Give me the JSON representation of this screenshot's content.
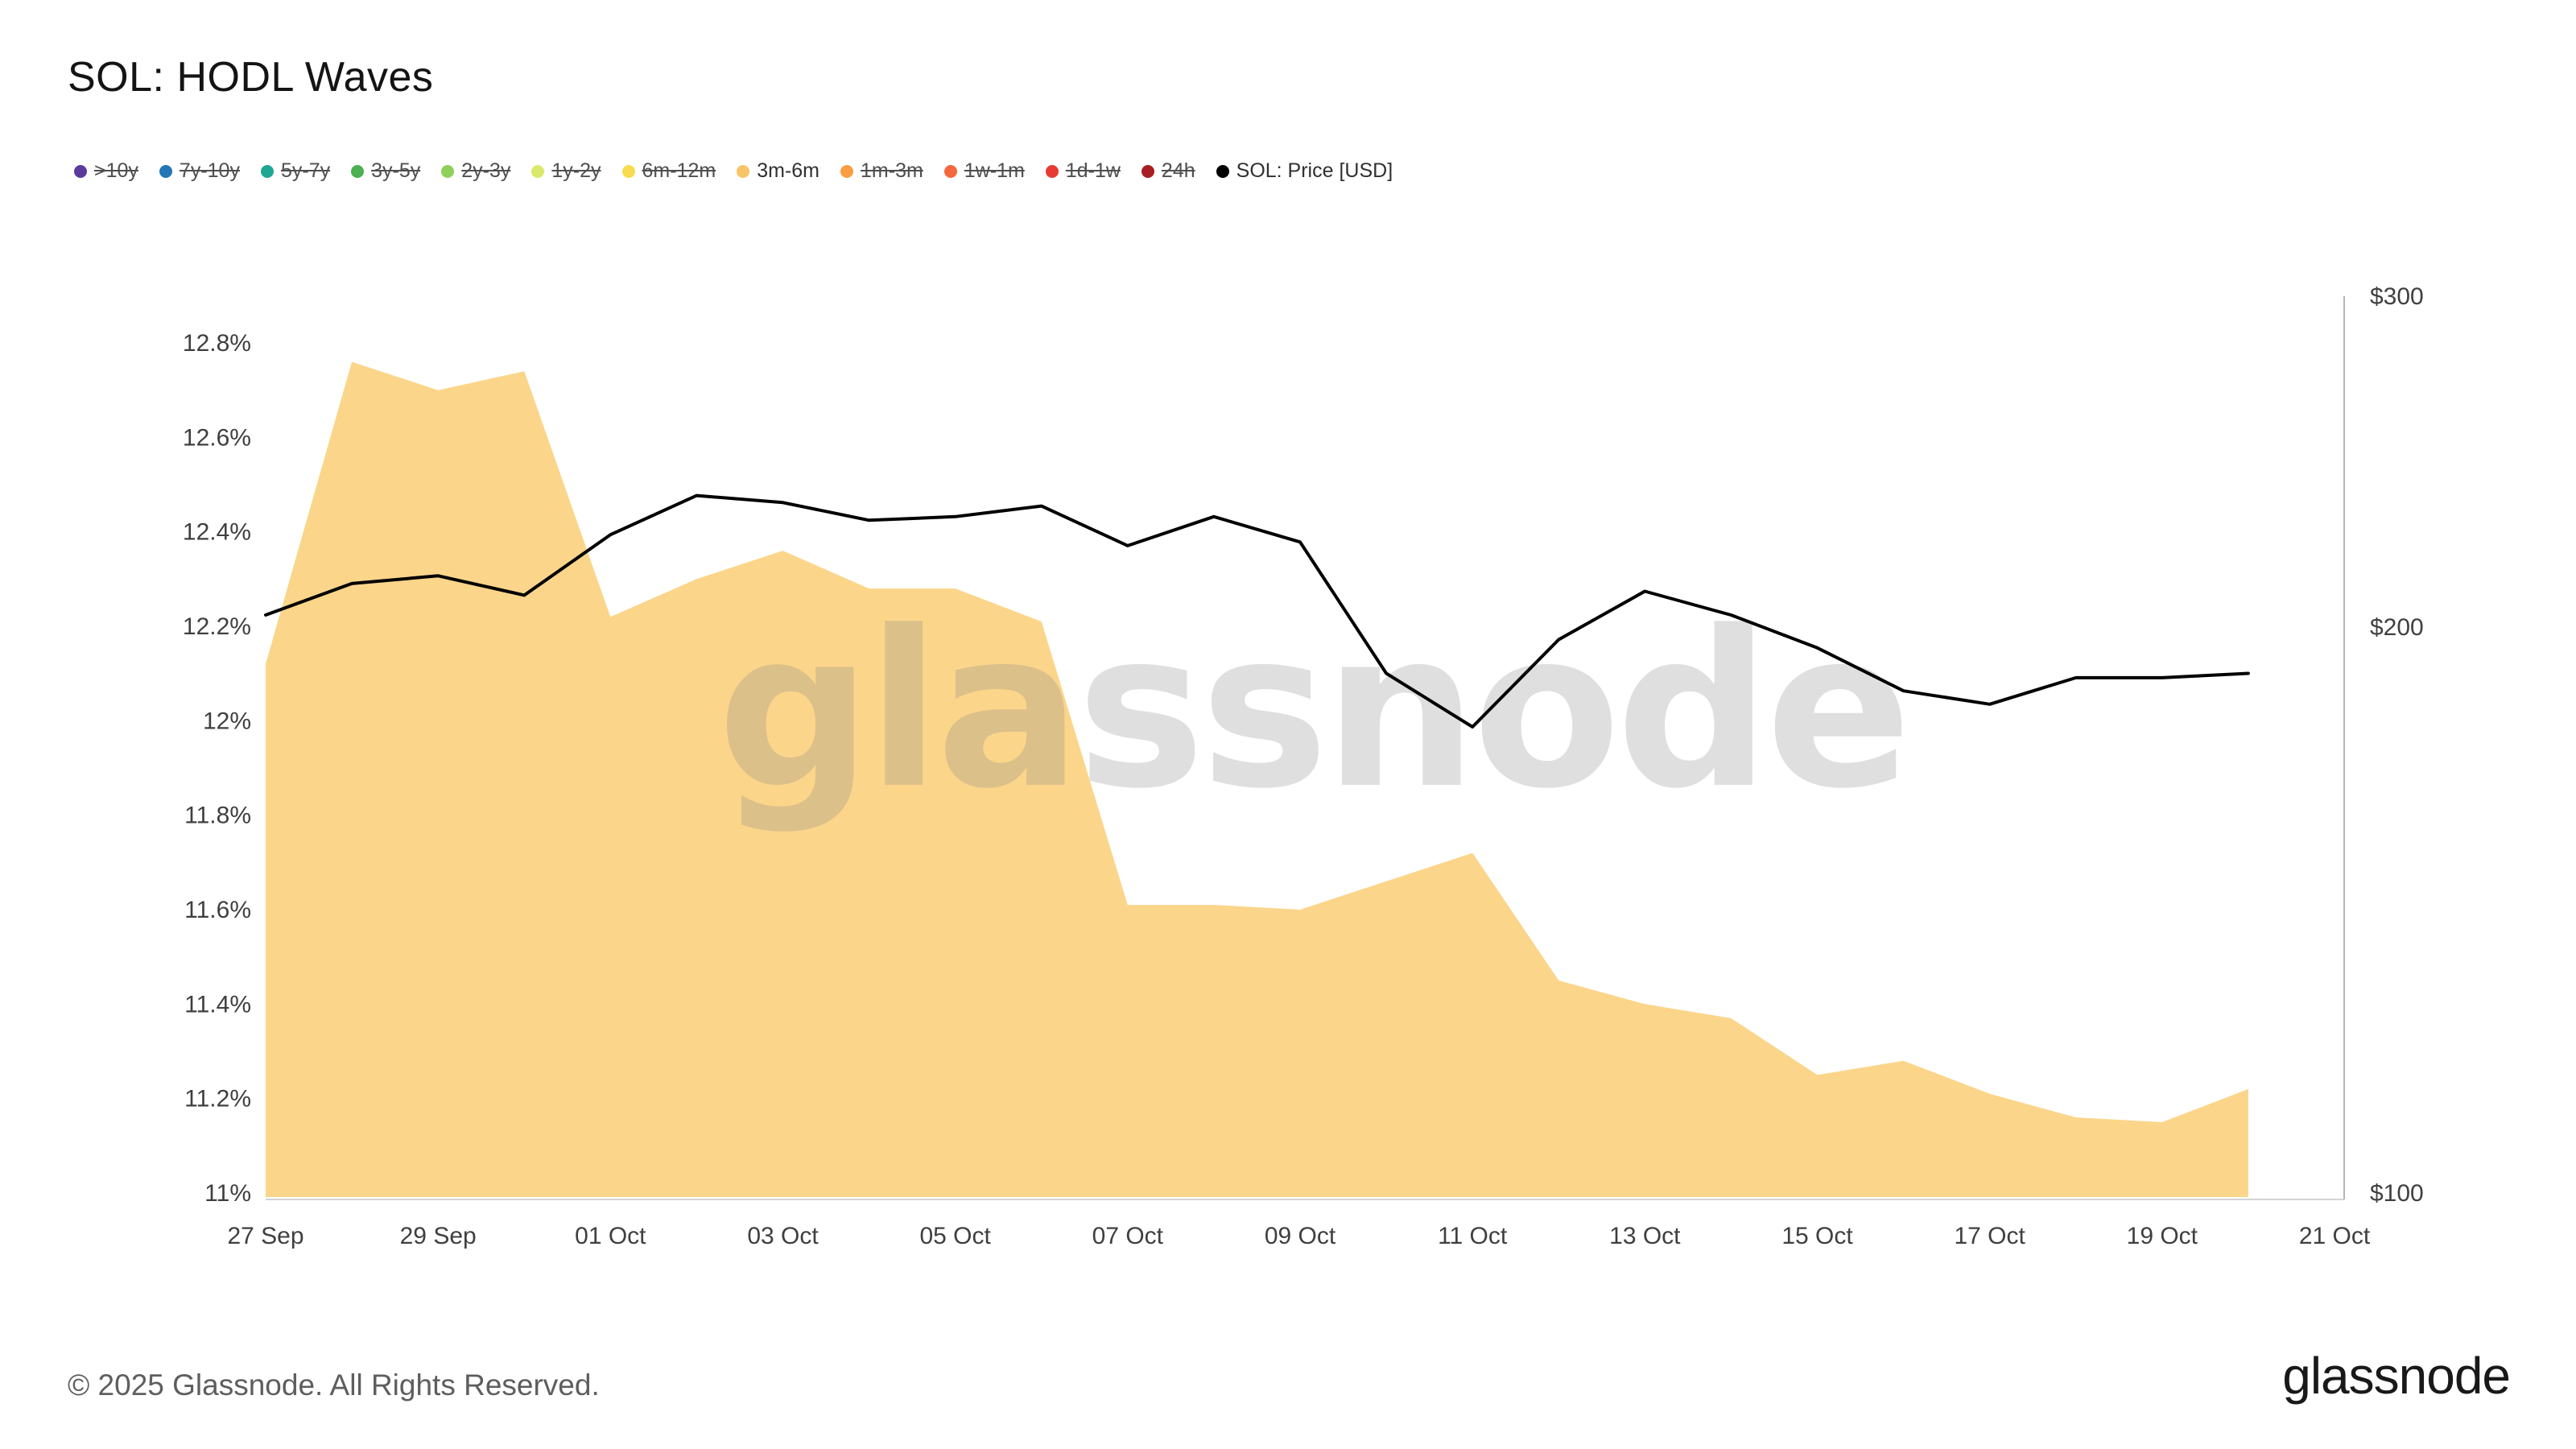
{
  "header": {
    "title": "SOL: HODL Waves"
  },
  "legend": {
    "items": [
      {
        "label": ">10y",
        "color": "#5b3a9b",
        "active": false
      },
      {
        "label": "7y-10y",
        "color": "#2277b4",
        "active": false
      },
      {
        "label": "5y-7y",
        "color": "#1fa795",
        "active": false
      },
      {
        "label": "3y-5y",
        "color": "#4caf50",
        "active": false
      },
      {
        "label": "2y-3y",
        "color": "#8fd05c",
        "active": false
      },
      {
        "label": "1y-2y",
        "color": "#dbe96b",
        "active": false
      },
      {
        "label": "6m-12m",
        "color": "#f6dc4e",
        "active": false
      },
      {
        "label": "3m-6m",
        "color": "#f8c468",
        "active": true
      },
      {
        "label": "1m-3m",
        "color": "#fa9d43",
        "active": false
      },
      {
        "label": "1w-1m",
        "color": "#f4683e",
        "active": false
      },
      {
        "label": "1d-1w",
        "color": "#e63a32",
        "active": false
      },
      {
        "label": "24h",
        "color": "#a81e22",
        "active": false
      },
      {
        "label": "SOL: Price [USD]",
        "color": "#000000",
        "active": true
      }
    ]
  },
  "chart_data": {
    "type": "area",
    "title": "SOL: HODL Waves",
    "x_dates": [
      "27 Sep",
      "28 Sep",
      "29 Sep",
      "30 Sep",
      "01 Oct",
      "02 Oct",
      "03 Oct",
      "04 Oct",
      "05 Oct",
      "06 Oct",
      "07 Oct",
      "08 Oct",
      "09 Oct",
      "10 Oct",
      "11 Oct",
      "12 Oct",
      "13 Oct",
      "14 Oct",
      "15 Oct",
      "16 Oct",
      "17 Oct",
      "18 Oct",
      "19 Oct",
      "20 Oct"
    ],
    "series": [
      {
        "name": "3m-6m",
        "type": "area",
        "axis": "left",
        "color": "#fbd58a",
        "values": [
          12.12,
          12.76,
          12.7,
          12.74,
          12.22,
          12.3,
          12.36,
          12.28,
          12.28,
          12.21,
          11.61,
          11.61,
          11.6,
          11.66,
          11.72,
          11.45,
          11.4,
          11.37,
          11.25,
          11.28,
          11.21,
          11.16,
          11.15,
          11.22
        ]
      },
      {
        "name": "SOL: Price [USD]",
        "type": "line",
        "axis": "right",
        "color": "#000000",
        "values": [
          203,
          211,
          213,
          208,
          224,
          235,
          233,
          228,
          229,
          232,
          221,
          229,
          222,
          189,
          177,
          197,
          209,
          203,
          195,
          185,
          182,
          188,
          188,
          189
        ]
      }
    ],
    "left_axis": {
      "unit": "%",
      "min": 11,
      "max": 12.8,
      "ticks": [
        11,
        11.2,
        11.4,
        11.6,
        11.8,
        12,
        12.2,
        12.4,
        12.6,
        12.8
      ],
      "tick_labels": [
        "11%",
        "11.2%",
        "11.4%",
        "11.6%",
        "11.8%",
        "12%",
        "12.2%",
        "12.4%",
        "12.6%",
        "12.8%"
      ]
    },
    "right_axis": {
      "unit": "USD",
      "scale": "log",
      "min": 100,
      "max": 300,
      "ticks": [
        100,
        200,
        300
      ],
      "tick_labels": [
        "$100",
        "$200",
        "$300"
      ]
    },
    "x_axis": {
      "tick_positions": [
        0,
        2,
        4,
        6,
        8,
        10,
        12,
        14,
        16,
        18,
        20,
        22,
        24
      ],
      "tick_labels": [
        "27 Sep",
        "29 Sep",
        "01 Oct",
        "03 Oct",
        "05 Oct",
        "07 Oct",
        "09 Oct",
        "11 Oct",
        "13 Oct",
        "15 Oct",
        "17 Oct",
        "19 Oct",
        "21 Oct"
      ]
    },
    "grid": false,
    "legend_position": "top"
  },
  "watermark": "glassnode",
  "footer": {
    "copyright": "© 2025 Glassnode. All Rights Reserved.",
    "logo": "glassnode"
  }
}
